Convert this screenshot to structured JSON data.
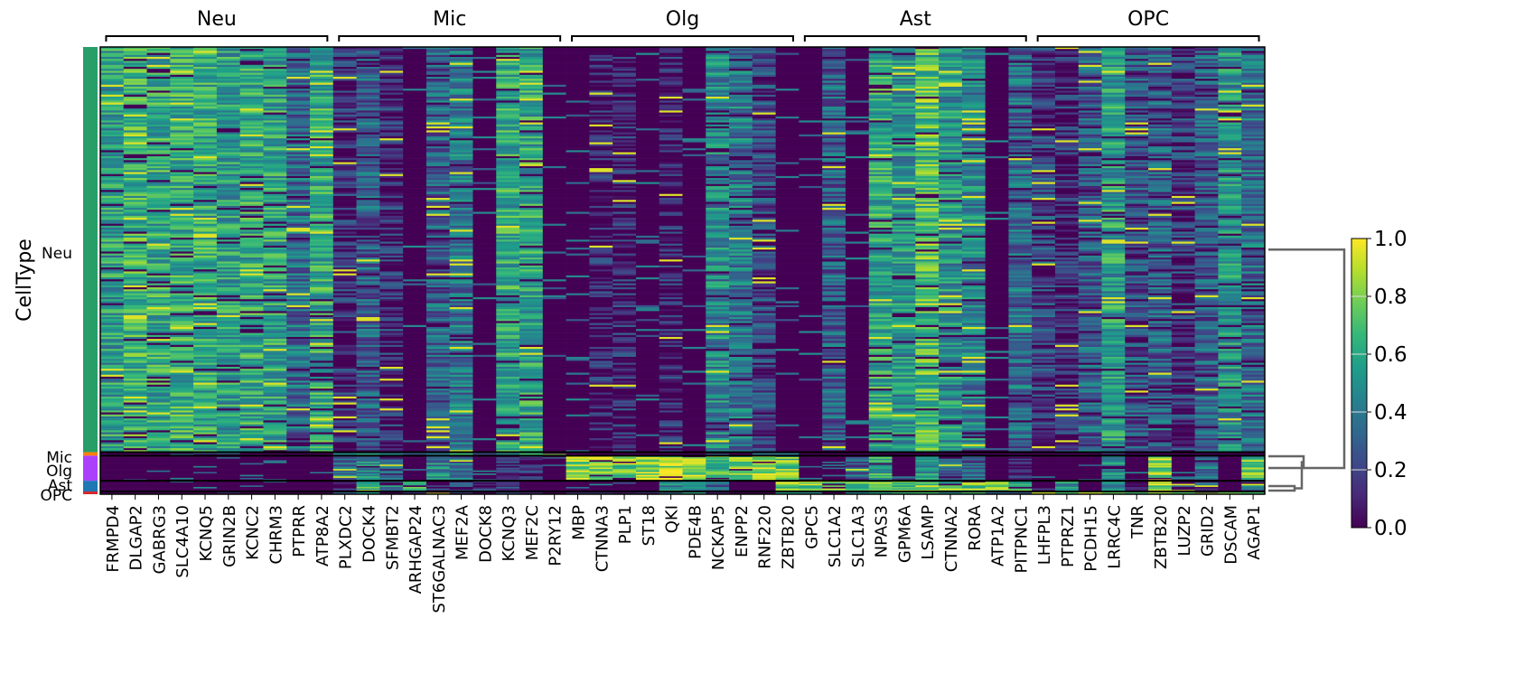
{
  "chart_data": {
    "type": "heatmap",
    "title": "",
    "xlabel": "",
    "ylabel": "CellType",
    "colormap": "viridis",
    "colorbar": {
      "min": 0.0,
      "max": 1.0,
      "ticks": [
        "0.0",
        "0.2",
        "0.4",
        "0.6",
        "0.8",
        "1.0"
      ],
      "placement": "right"
    },
    "var_groups": [
      {
        "label": "Neu",
        "genes": [
          "FRMPD4",
          "DLGAP2",
          "GABRG3",
          "SLC4A10",
          "KCNQ5",
          "GRIN2B",
          "KCNC2",
          "CHRM3",
          "PTPRR",
          "ATP8A2"
        ]
      },
      {
        "label": "Mic",
        "genes": [
          "PLXDC2",
          "DOCK4",
          "SFMBT2",
          "ARHGAP24",
          "ST6GALNAC3",
          "MEF2A",
          "DOCK8",
          "KCNQ3",
          "MEF2C",
          "P2RY12"
        ]
      },
      {
        "label": "Olg",
        "genes": [
          "MBP",
          "CTNNA3",
          "PLP1",
          "ST18",
          "QKI",
          "PDE4B",
          "NCKAP5",
          "ENPP2",
          "RNF220",
          "ZBTB20"
        ]
      },
      {
        "label": "Ast",
        "genes": [
          "GPC5",
          "SLC1A2",
          "SLC1A3",
          "NPAS3",
          "GPM6A",
          "LSAMP",
          "CTNNA2",
          "RORA",
          "ATP1A2",
          "PITPNC1"
        ]
      },
      {
        "label": "OPC",
        "genes": [
          "LHFPL3",
          "PTPRZ1",
          "PCDH15",
          "LRRC4C",
          "TNR",
          "ZBTB20",
          "LUZP2",
          "GRID2",
          "DSCAM",
          "AGAP1"
        ]
      }
    ],
    "row_groups": [
      {
        "label": "Neu",
        "color": "#279e68",
        "fraction": 0.906
      },
      {
        "label": "Mic",
        "color": "#ff7f0e",
        "fraction": 0.008
      },
      {
        "label": "Olg",
        "color": "#aa40fc",
        "fraction": 0.056
      },
      {
        "label": "Ast",
        "color": "#1f77b4",
        "fraction": 0.024
      },
      {
        "label": "OPC",
        "color": "#d62728",
        "fraction": 0.006
      }
    ],
    "mean_expression": {
      "Neu": [
        0.55,
        0.65,
        0.6,
        0.62,
        0.6,
        0.55,
        0.6,
        0.58,
        0.35,
        0.6,
        0.12,
        0.3,
        0.12,
        0.05,
        0.3,
        0.4,
        0.02,
        0.6,
        0.58,
        0.02,
        0.02,
        0.08,
        0.1,
        0.02,
        0.08,
        0.02,
        0.45,
        0.4,
        0.2,
        0.02,
        0.02,
        0.3,
        0.02,
        0.6,
        0.5,
        0.7,
        0.5,
        0.45,
        0.02,
        0.35,
        0.2,
        0.1,
        0.3,
        0.55,
        0.25,
        0.3,
        0.15,
        0.3,
        0.5,
        0.35
      ],
      "Mic": [
        0.05,
        0.05,
        0.05,
        0.05,
        0.05,
        0.05,
        0.05,
        0.05,
        0.05,
        0.05,
        0.5,
        0.6,
        0.5,
        0.3,
        0.55,
        0.5,
        0.3,
        0.5,
        0.5,
        0.9,
        0.05,
        0.05,
        0.05,
        0.05,
        0.05,
        0.05,
        0.05,
        0.05,
        0.05,
        0.5,
        0.05,
        0.05,
        0.05,
        0.05,
        0.05,
        0.05,
        0.05,
        0.05,
        0.05,
        0.05,
        0.05,
        0.05,
        0.05,
        0.05,
        0.05,
        0.05,
        0.05,
        0.05,
        0.05,
        0.05
      ],
      "Olg": [
        0.03,
        0.03,
        0.03,
        0.03,
        0.03,
        0.03,
        0.03,
        0.03,
        0.03,
        0.05,
        0.4,
        0.45,
        0.25,
        0.05,
        0.45,
        0.35,
        0.05,
        0.1,
        0.1,
        0.03,
        0.85,
        0.82,
        0.75,
        0.85,
        0.88,
        0.85,
        0.7,
        0.75,
        0.85,
        0.75,
        0.03,
        0.03,
        0.3,
        0.6,
        0.03,
        0.5,
        0.3,
        0.3,
        0.03,
        0.15,
        0.03,
        0.03,
        0.03,
        0.45,
        0.03,
        0.8,
        0.03,
        0.35,
        0.05,
        0.7
      ],
      "Ast": [
        0.05,
        0.05,
        0.05,
        0.05,
        0.05,
        0.05,
        0.05,
        0.05,
        0.05,
        0.05,
        0.1,
        0.6,
        0.5,
        0.7,
        0.1,
        0.2,
        0.1,
        0.3,
        0.05,
        0.05,
        0.05,
        0.05,
        0.05,
        0.05,
        0.5,
        0.4,
        0.3,
        0.05,
        0.05,
        0.8,
        0.8,
        0.75,
        0.7,
        0.7,
        0.75,
        0.8,
        0.7,
        0.75,
        0.7,
        0.7,
        0.1,
        0.5,
        0.05,
        0.4,
        0.1,
        0.85,
        0.1,
        0.2,
        0.05,
        0.3
      ],
      "OPC": [
        0.05,
        0.05,
        0.05,
        0.05,
        0.05,
        0.05,
        0.05,
        0.05,
        0.05,
        0.05,
        0.3,
        0.4,
        0.1,
        0.05,
        0.1,
        0.3,
        0.05,
        0.2,
        0.1,
        0.05,
        0.3,
        0.3,
        0.2,
        0.05,
        0.5,
        0.5,
        0.2,
        0.05,
        0.05,
        0.6,
        0.5,
        0.4,
        0.3,
        0.6,
        0.5,
        0.6,
        0.5,
        0.6,
        0.4,
        0.3,
        0.9,
        0.85,
        0.8,
        0.7,
        0.6,
        0.8,
        0.65,
        0.7,
        0.7,
        0.75
      ]
    },
    "dendrogram": {
      "placement": "right",
      "leaves": [
        "Neu",
        "Mic",
        "Olg",
        "Ast",
        "OPC"
      ],
      "merges": [
        [
          "Ast",
          "OPC"
        ],
        [
          "Mic",
          "Olg"
        ],
        [
          "Mic+Olg",
          "Ast+OPC"
        ],
        [
          "Neu",
          "rest"
        ]
      ]
    }
  }
}
